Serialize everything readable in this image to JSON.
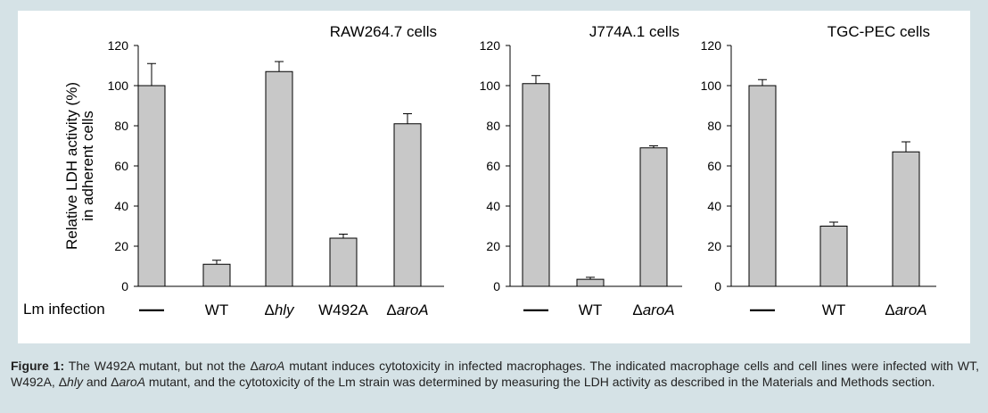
{
  "colors": {
    "background": "#d5e2e6",
    "panel": "#ffffff",
    "bar_fill": "#c8c8c8",
    "bar_stroke": "#000000"
  },
  "row_label": "Lm infection",
  "y_axis_label_line1": "Relative LDH activity (%)",
  "y_axis_label_line2": "in adherent cells",
  "chart_data": [
    {
      "type": "bar",
      "title": "RAW264.7 cells",
      "categories": [
        "—",
        "WT",
        "Δhly",
        "W492A",
        "ΔaroA"
      ],
      "category_italic": [
        "",
        "",
        "hly",
        "",
        "aroA"
      ],
      "values": [
        100,
        11,
        107,
        24,
        81
      ],
      "errors": [
        11,
        2,
        5,
        2,
        5
      ],
      "ylim": [
        0,
        120
      ],
      "yticks": [
        0,
        20,
        40,
        60,
        80,
        100,
        120
      ],
      "ylabel": "Relative LDH activity (%) in adherent cells"
    },
    {
      "type": "bar",
      "title": "J774A.1 cells",
      "categories": [
        "—",
        "WT",
        "ΔaroA"
      ],
      "category_italic": [
        "",
        "",
        "aroA"
      ],
      "values": [
        101,
        3.5,
        69
      ],
      "errors": [
        4,
        1,
        1
      ],
      "ylim": [
        0,
        120
      ],
      "yticks": [
        0,
        20,
        40,
        60,
        80,
        100,
        120
      ]
    },
    {
      "type": "bar",
      "title": "TGC-PEC cells",
      "categories": [
        "—",
        "WT",
        "ΔaroA"
      ],
      "category_italic": [
        "",
        "",
        "aroA"
      ],
      "values": [
        100,
        30,
        67
      ],
      "errors": [
        3,
        2,
        5
      ],
      "ylim": [
        0,
        120
      ],
      "yticks": [
        0,
        20,
        40,
        60,
        80,
        100,
        120
      ]
    }
  ],
  "caption": {
    "label": "Figure 1:",
    "p1": " The W492A mutant, but not the Δ",
    "i1": "aroA",
    "p2": " mutant induces cytotoxicity in infected macrophages. The indicated macrophage cells and cell lines were infected with WT, W492A, Δ",
    "i2": "hly",
    "p3": " and Δ",
    "i3": "aroA",
    "p4": " mutant, and the cytotoxicity of the Lm strain was determined by measuring the LDH activity as described in the Materials and Methods section."
  }
}
